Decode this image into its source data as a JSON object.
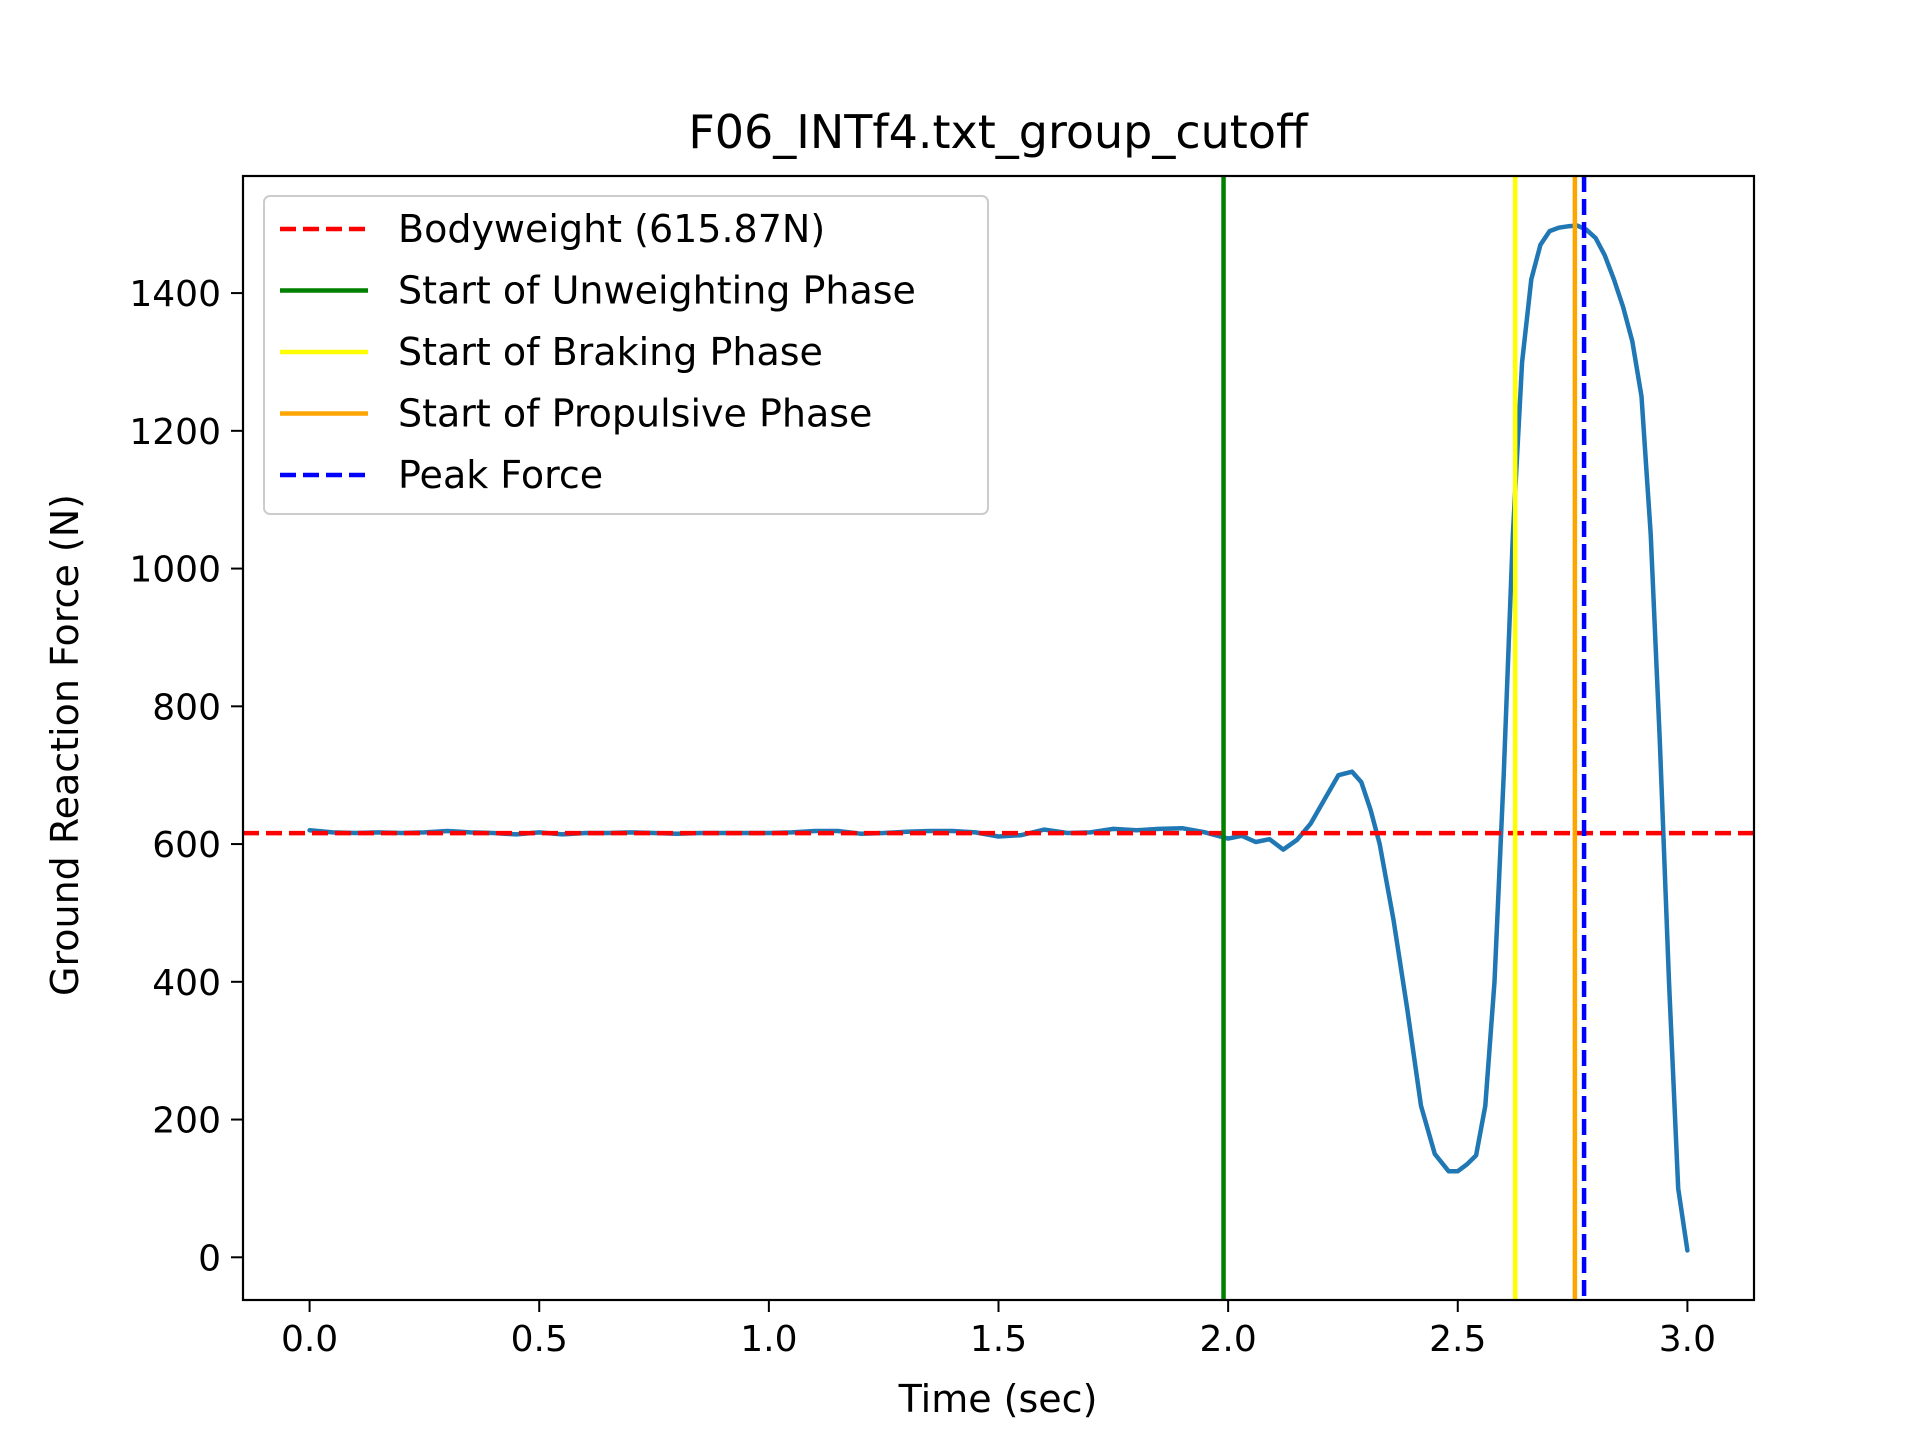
{
  "chart_data": {
    "type": "line",
    "title": "F06_INTf4.txt_group_cutoff",
    "xlabel": "Time (sec)",
    "ylabel": "Ground Reaction Force (N)",
    "xlim": [
      -0.145,
      3.145
    ],
    "ylim": [
      -62,
      1570
    ],
    "xticks": [
      0.0,
      0.5,
      1.0,
      1.5,
      2.0,
      2.5,
      3.0
    ],
    "xtick_labels": [
      "0.0",
      "0.5",
      "1.0",
      "1.5",
      "2.0",
      "2.5",
      "3.0"
    ],
    "yticks": [
      0,
      200,
      400,
      600,
      800,
      1000,
      1200,
      1400
    ],
    "ytick_labels": [
      "0",
      "200",
      "400",
      "600",
      "800",
      "1000",
      "1200",
      "1400"
    ],
    "grid": false,
    "legend_position": "top-left",
    "series": [
      {
        "color": "#1f77b4",
        "x": [
          0.0,
          0.05,
          0.1,
          0.15,
          0.2,
          0.25,
          0.3,
          0.35,
          0.4,
          0.45,
          0.5,
          0.55,
          0.6,
          0.65,
          0.7,
          0.75,
          0.8,
          0.85,
          0.9,
          0.95,
          1.0,
          1.05,
          1.1,
          1.15,
          1.2,
          1.25,
          1.3,
          1.35,
          1.4,
          1.45,
          1.5,
          1.55,
          1.6,
          1.65,
          1.7,
          1.75,
          1.8,
          1.85,
          1.9,
          1.95,
          2.0,
          2.03,
          2.06,
          2.09,
          2.12,
          2.15,
          2.18,
          2.21,
          2.24,
          2.27,
          2.29,
          2.31,
          2.33,
          2.36,
          2.39,
          2.42,
          2.45,
          2.48,
          2.5,
          2.52,
          2.54,
          2.56,
          2.58,
          2.6,
          2.62,
          2.64,
          2.66,
          2.68,
          2.7,
          2.72,
          2.74,
          2.76,
          2.78,
          2.8,
          2.82,
          2.84,
          2.86,
          2.88,
          2.9,
          2.92,
          2.94,
          2.96,
          2.98,
          3.0
        ],
        "y": [
          620,
          617,
          616,
          617,
          616,
          617,
          619,
          617,
          616,
          614,
          617,
          614,
          616,
          616,
          617,
          616,
          615,
          616,
          616,
          616,
          616,
          617,
          619,
          619,
          615,
          616,
          618,
          619,
          619,
          617,
          611,
          613,
          621,
          616,
          617,
          622,
          620,
          622,
          623,
          617,
          608,
          612,
          603,
          607,
          592,
          606,
          630,
          665,
          700,
          705,
          690,
          650,
          600,
          490,
          360,
          220,
          150,
          125,
          125,
          135,
          148,
          220,
          400,
          700,
          1050,
          1300,
          1420,
          1470,
          1490,
          1495,
          1497,
          1498,
          1492,
          1480,
          1455,
          1420,
          1380,
          1330,
          1250,
          1050,
          750,
          400,
          100,
          10
        ]
      }
    ],
    "reference_lines": [
      {
        "name": "Bodyweight (615.87N)",
        "orientation": "horizontal",
        "value": 615.87,
        "color": "#ff0000",
        "style": "dashed"
      },
      {
        "name": "Start of Unweighting Phase",
        "orientation": "vertical",
        "value": 1.99,
        "color": "#008000",
        "style": "solid"
      },
      {
        "name": "Start of Braking Phase",
        "orientation": "vertical",
        "value": 2.625,
        "color": "#ffff00",
        "style": "solid"
      },
      {
        "name": "Start of Propulsive Phase",
        "orientation": "vertical",
        "value": 2.755,
        "color": "#ffa500",
        "style": "solid"
      },
      {
        "name": "Peak Force",
        "orientation": "vertical",
        "value": 2.775,
        "color": "#0000ff",
        "style": "dashed"
      }
    ]
  }
}
